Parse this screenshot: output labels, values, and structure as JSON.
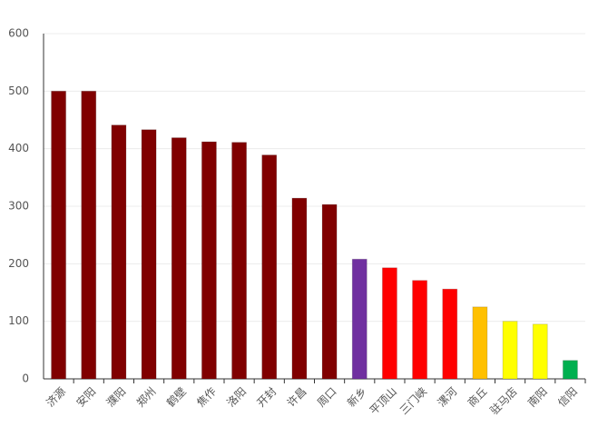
{
  "chart_data": {
    "type": "bar",
    "categories": [
      "济源",
      "安阳",
      "濮阳",
      "郑州",
      "鹤壁",
      "焦作",
      "洛阳",
      "开封",
      "许昌",
      "周口",
      "新乡",
      "平顶山",
      "三门峡",
      "漯河",
      "商丘",
      "驻马店",
      "南阳",
      "信阳"
    ],
    "values": [
      500,
      500,
      441,
      433,
      419,
      412,
      411,
      389,
      314,
      303,
      208,
      193,
      171,
      156,
      125,
      100,
      95,
      32
    ],
    "colors": [
      "#800000",
      "#800000",
      "#800000",
      "#800000",
      "#800000",
      "#800000",
      "#800000",
      "#800000",
      "#800000",
      "#800000",
      "#7030a0",
      "#ff0000",
      "#ff0000",
      "#ff0000",
      "#ffc000",
      "#ffff00",
      "#ffff00",
      "#00b050"
    ],
    "ylim": [
      0,
      600
    ],
    "yticks": [
      0,
      100,
      200,
      300,
      400,
      500,
      600
    ],
    "grid": true
  }
}
